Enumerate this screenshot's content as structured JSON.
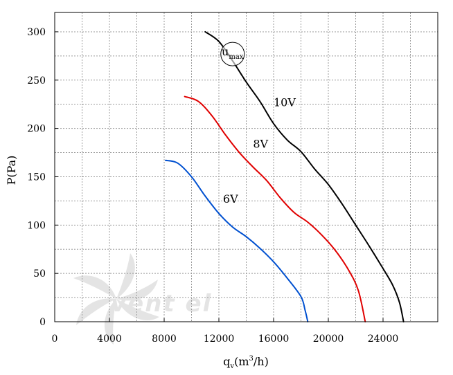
{
  "chart_data": {
    "type": "line",
    "xlabel": "qv(m3/h)",
    "xlabel_parts": {
      "main": "q",
      "sub": "v",
      "open": "(m",
      "sup": "3",
      "close": "/h)"
    },
    "ylabel": "P(Pa)",
    "xlim": [
      0,
      28000
    ],
    "ylim": [
      0,
      320
    ],
    "xticks": [
      0,
      4000,
      8000,
      12000,
      16000,
      20000,
      24000
    ],
    "xtick_labels": [
      "0",
      "4000",
      "8000",
      "12000",
      "16000",
      "20000",
      "24000"
    ],
    "yticks": [
      0,
      50,
      100,
      150,
      200,
      250,
      300
    ],
    "ytick_labels": [
      "0",
      "50",
      "100",
      "150",
      "200",
      "250",
      "300"
    ],
    "x_minor_step": 2000,
    "y_minor_step": 25,
    "grid": true,
    "legend": "none",
    "annotation": {
      "text": "umax",
      "main": "u",
      "sub": "max",
      "x": 13000,
      "y": 277
    },
    "watermark": "vent el",
    "series": [
      {
        "name": "10V",
        "color": "#000000",
        "label_at": [
          16000,
          223
        ],
        "x": [
          11000,
          12000,
          13000,
          14000,
          15000,
          16000,
          17000,
          18000,
          19000,
          20000,
          21000,
          22000,
          23000,
          24000,
          24700,
          25200,
          25500
        ],
        "y": [
          300,
          290,
          270,
          248,
          228,
          205,
          188,
          176,
          158,
          142,
          122,
          100,
          78,
          55,
          38,
          20,
          0
        ]
      },
      {
        "name": "8V",
        "color": "#e00000",
        "label_at": [
          14500,
          180
        ],
        "x": [
          9500,
          10500,
          11500,
          12500,
          13500,
          14500,
          15500,
          16500,
          17500,
          18500,
          19500,
          20500,
          21500,
          22200,
          22700
        ],
        "y": [
          233,
          228,
          213,
          193,
          175,
          160,
          146,
          128,
          113,
          103,
          90,
          74,
          53,
          32,
          0
        ]
      },
      {
        "name": "6V",
        "color": "#0050d0",
        "label_at": [
          12300,
          123
        ],
        "x": [
          8100,
          9000,
          10000,
          11000,
          12000,
          13000,
          14000,
          15000,
          16000,
          17000,
          18000,
          18300,
          18500
        ],
        "y": [
          167,
          164,
          150,
          130,
          112,
          98,
          88,
          76,
          62,
          45,
          26,
          12,
          0
        ]
      }
    ]
  }
}
